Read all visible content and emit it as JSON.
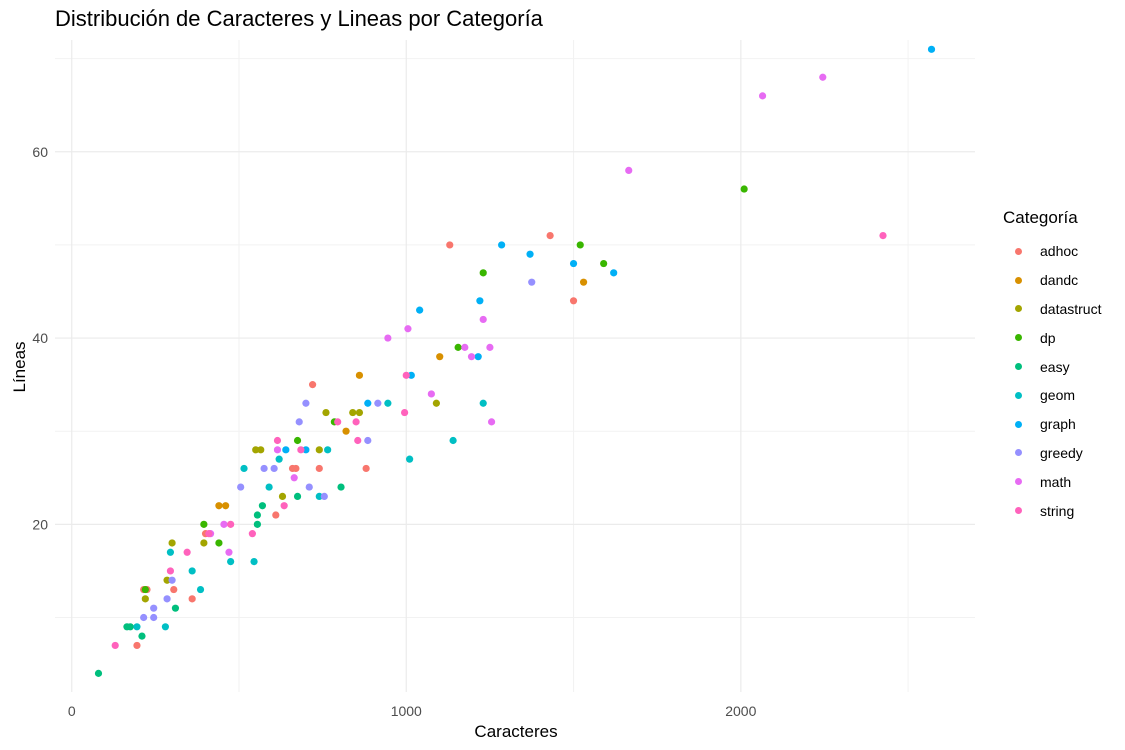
{
  "chart_data": {
    "type": "scatter",
    "title": "Distribución de Caracteres y Lineas por Categoría",
    "xlabel": "Caracteres",
    "ylabel": "Líneas",
    "xlim": [
      -50,
      2700
    ],
    "ylim": [
      2,
      72
    ],
    "x_ticks": [
      0,
      1000,
      2000
    ],
    "y_ticks": [
      20,
      40,
      60
    ],
    "x_tick_labels": [
      "0",
      "1000",
      "2000"
    ],
    "y_tick_labels": [
      "20",
      "40",
      "60"
    ],
    "grid": true,
    "legend_title": "Categoría",
    "legend_position": "right",
    "series": [
      {
        "name": "adhoc",
        "color": "#F8766D",
        "points": [
          [
            195,
            7
          ],
          [
            225,
            13
          ],
          [
            215,
            13
          ],
          [
            305,
            13
          ],
          [
            360,
            12
          ],
          [
            400,
            19
          ],
          [
            610,
            21
          ],
          [
            660,
            26
          ],
          [
            670,
            26
          ],
          [
            720,
            35
          ],
          [
            740,
            26
          ],
          [
            880,
            26
          ],
          [
            1130,
            50
          ],
          [
            1430,
            51
          ],
          [
            1500,
            44
          ]
        ]
      },
      {
        "name": "dandc",
        "color": "#D89000",
        "points": [
          [
            440,
            22
          ],
          [
            460,
            22
          ],
          [
            820,
            30
          ],
          [
            860,
            36
          ],
          [
            1100,
            38
          ],
          [
            1530,
            46
          ]
        ]
      },
      {
        "name": "datastruct",
        "color": "#A3A500",
        "points": [
          [
            220,
            12
          ],
          [
            285,
            14
          ],
          [
            300,
            18
          ],
          [
            395,
            18
          ],
          [
            550,
            28
          ],
          [
            565,
            28
          ],
          [
            630,
            23
          ],
          [
            740,
            28
          ],
          [
            760,
            32
          ],
          [
            840,
            32
          ],
          [
            860,
            32
          ],
          [
            1090,
            33
          ]
        ]
      },
      {
        "name": "dp",
        "color": "#39B600",
        "points": [
          [
            220,
            13
          ],
          [
            395,
            20
          ],
          [
            440,
            18
          ],
          [
            675,
            29
          ],
          [
            785,
            31
          ],
          [
            1155,
            39
          ],
          [
            1230,
            47
          ],
          [
            1520,
            50
          ],
          [
            1590,
            48
          ],
          [
            2010,
            56
          ]
        ]
      },
      {
        "name": "easy",
        "color": "#00BF7D",
        "points": [
          [
            80,
            4
          ],
          [
            165,
            9
          ],
          [
            175,
            9
          ],
          [
            210,
            8
          ],
          [
            310,
            11
          ],
          [
            555,
            20
          ],
          [
            555,
            21
          ],
          [
            570,
            22
          ],
          [
            675,
            23
          ],
          [
            805,
            24
          ]
        ]
      },
      {
        "name": "geom",
        "color": "#00BFC4",
        "points": [
          [
            195,
            9
          ],
          [
            280,
            9
          ],
          [
            295,
            17
          ],
          [
            360,
            15
          ],
          [
            385,
            13
          ],
          [
            475,
            16
          ],
          [
            515,
            26
          ],
          [
            545,
            16
          ],
          [
            590,
            24
          ],
          [
            620,
            27
          ],
          [
            740,
            23
          ],
          [
            765,
            28
          ],
          [
            945,
            33
          ],
          [
            1010,
            27
          ],
          [
            1140,
            29
          ],
          [
            1230,
            33
          ]
        ]
      },
      {
        "name": "graph",
        "color": "#00B0F6",
        "points": [
          [
            640,
            28
          ],
          [
            700,
            28
          ],
          [
            885,
            33
          ],
          [
            1015,
            36
          ],
          [
            1040,
            43
          ],
          [
            1215,
            38
          ],
          [
            1220,
            44
          ],
          [
            1285,
            50
          ],
          [
            1370,
            49
          ],
          [
            1500,
            48
          ],
          [
            1620,
            47
          ],
          [
            2570,
            71
          ]
        ]
      },
      {
        "name": "greedy",
        "color": "#9590FF",
        "points": [
          [
            215,
            10
          ],
          [
            245,
            11
          ],
          [
            245,
            10
          ],
          [
            285,
            12
          ],
          [
            300,
            14
          ],
          [
            505,
            24
          ],
          [
            575,
            26
          ],
          [
            605,
            26
          ],
          [
            680,
            31
          ],
          [
            710,
            24
          ],
          [
            885,
            29
          ],
          [
            700,
            33
          ],
          [
            755,
            23
          ],
          [
            915,
            33
          ],
          [
            1375,
            46
          ]
        ]
      },
      {
        "name": "math",
        "color": "#E76BF3",
        "points": [
          [
            415,
            19
          ],
          [
            455,
            20
          ],
          [
            470,
            17
          ],
          [
            615,
            28
          ],
          [
            665,
            25
          ],
          [
            945,
            40
          ],
          [
            1005,
            41
          ],
          [
            1075,
            34
          ],
          [
            1175,
            39
          ],
          [
            1195,
            38
          ],
          [
            1230,
            42
          ],
          [
            1250,
            39
          ],
          [
            1255,
            31
          ],
          [
            1665,
            58
          ],
          [
            2065,
            66
          ],
          [
            2245,
            68
          ]
        ]
      },
      {
        "name": "string",
        "color": "#FF62BC",
        "points": [
          [
            130,
            7
          ],
          [
            295,
            15
          ],
          [
            345,
            17
          ],
          [
            410,
            19
          ],
          [
            475,
            20
          ],
          [
            540,
            19
          ],
          [
            615,
            29
          ],
          [
            635,
            22
          ],
          [
            685,
            28
          ],
          [
            795,
            31
          ],
          [
            850,
            31
          ],
          [
            855,
            29
          ],
          [
            995,
            32
          ],
          [
            1000,
            36
          ],
          [
            2425,
            51
          ]
        ]
      }
    ]
  }
}
